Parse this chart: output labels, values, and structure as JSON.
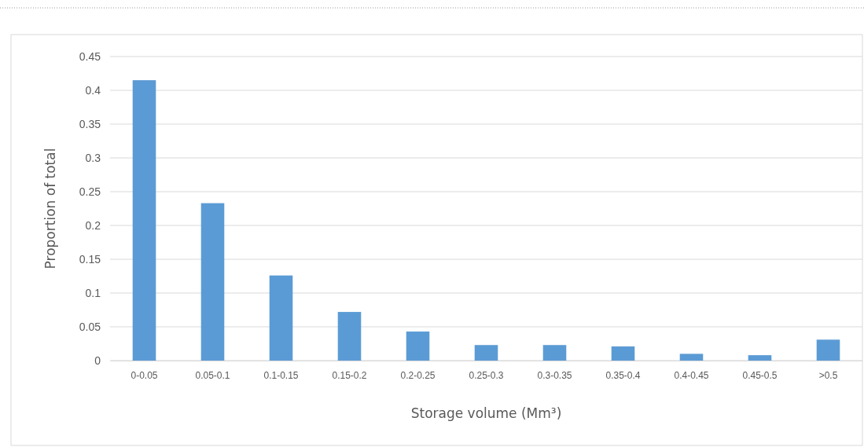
{
  "chart_data": {
    "type": "bar",
    "xlabel": "Storage volume (Mm³)",
    "ylabel": "Proportion of total",
    "categories": [
      "0-0.05",
      "0.05-0.1",
      "0.1-0.15",
      "0.15-0.2",
      "0.2-0.25",
      "0.25-0.3",
      "0.3-0.35",
      "0.35-0.4",
      "0.4-0.45",
      "0.45-0.5",
      ">0.5"
    ],
    "values": [
      0.415,
      0.233,
      0.126,
      0.072,
      0.043,
      0.023,
      0.023,
      0.021,
      0.01,
      0.008,
      0.031
    ],
    "color": "#5b9bd5",
    "ylim": [
      0,
      0.45
    ],
    "yticks": [
      0,
      0.05,
      0.1,
      0.15,
      0.2,
      0.25,
      0.3,
      0.35,
      0.4,
      0.45
    ],
    "grid": "y"
  }
}
